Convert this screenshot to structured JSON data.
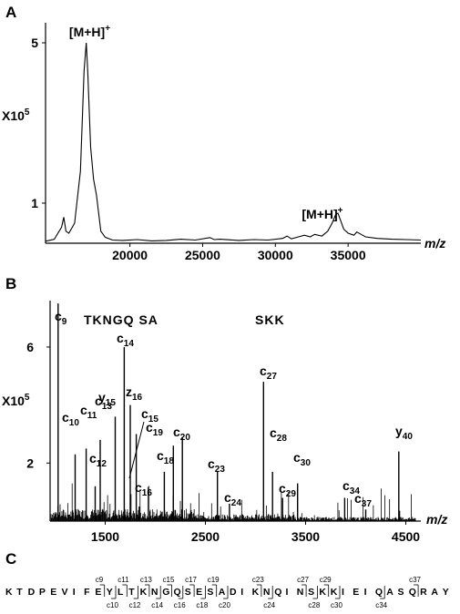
{
  "chart_data": [
    {
      "panel": "A",
      "type": "line",
      "ylabel_prefix": "X10",
      "ylabel_exp": "5",
      "xlabel": "m/z",
      "x_ticks": [
        "20000",
        "25000",
        "30000",
        "35000"
      ],
      "y_ticks": [
        "1",
        "5"
      ],
      "xlim": [
        14200,
        40000
      ],
      "ylim": [
        0,
        5.5
      ],
      "annotations": [
        {
          "text": "[M+H]",
          "sup": "+",
          "x": 17200
        },
        {
          "text": "[M+H]",
          "sup": "+",
          "x": 34200
        }
      ],
      "series": [
        {
          "x": [
            14200,
            14800,
            15300,
            15450,
            15600,
            15800,
            16200,
            16600,
            16850,
            17000,
            17100,
            17300,
            17500,
            17700,
            18000,
            18300,
            18800,
            19500,
            20500,
            21500,
            22500,
            23500,
            24500,
            25500,
            25800,
            26200,
            27500,
            28500,
            29500,
            30500,
            30800,
            31100,
            31500,
            32000,
            32400,
            32700,
            33200,
            33600,
            33900,
            34150,
            34300,
            34500,
            34700,
            35000,
            35400,
            35600,
            35900,
            36200,
            37000,
            38000,
            39000,
            40000
          ],
          "y": [
            0.05,
            0.1,
            0.4,
            0.65,
            0.3,
            0.25,
            0.5,
            1.8,
            4.3,
            5.0,
            4.3,
            2.4,
            1.6,
            1.2,
            0.3,
            0.15,
            0.08,
            0.07,
            0.09,
            0.06,
            0.07,
            0.1,
            0.08,
            0.14,
            0.09,
            0.1,
            0.07,
            0.09,
            0.08,
            0.12,
            0.18,
            0.11,
            0.15,
            0.2,
            0.16,
            0.22,
            0.18,
            0.3,
            0.5,
            0.72,
            0.75,
            0.55,
            0.35,
            0.25,
            0.2,
            0.28,
            0.22,
            0.16,
            0.12,
            0.1,
            0.09,
            0.08
          ]
        }
      ]
    },
    {
      "panel": "B",
      "type": "bar",
      "ylabel_prefix": "X10",
      "ylabel_exp": "5",
      "xlabel": "m/z",
      "x_ticks": [
        "1500",
        "2500",
        "3500",
        "4500"
      ],
      "y_ticks": [
        "2",
        "6"
      ],
      "xlim": [
        950,
        4650
      ],
      "ylim": [
        0,
        7.6
      ],
      "sequence_tags": [
        "TKNGQ SA",
        "SKK"
      ],
      "labeled_peaks": [
        {
          "ion": "c",
          "n": "9",
          "x": 1030,
          "y": 7.5
        },
        {
          "ion": "c",
          "n": "10",
          "x": 1200,
          "y": 2.3
        },
        {
          "ion": "c",
          "n": "11",
          "x": 1310,
          "y": 2.5
        },
        {
          "ion": "c",
          "n": "12",
          "x": 1400,
          "y": 1.2
        },
        {
          "ion": "c",
          "n": "13",
          "x": 1450,
          "y": 2.8
        },
        {
          "ion": "y",
          "n": "15",
          "x": 1600,
          "y": 3.6
        },
        {
          "ion": "c",
          "n": "14",
          "x": 1690,
          "y": 6.0
        },
        {
          "ion": "z",
          "n": "16",
          "x": 1750,
          "y": 4.0
        },
        {
          "ion": "c",
          "n": "15",
          "x": 1810,
          "y": 3.0
        },
        {
          "ion": "c",
          "n": "16",
          "x": 1840,
          "y": 0.5
        },
        {
          "ion": "c",
          "n": "18",
          "x": 2090,
          "y": 1.7
        },
        {
          "ion": "c",
          "n": "19",
          "x": 2180,
          "y": 2.6
        },
        {
          "ion": "c",
          "n": "20",
          "x": 2270,
          "y": 2.9
        },
        {
          "ion": "c",
          "n": "23",
          "x": 2620,
          "y": 1.7
        },
        {
          "ion": "c",
          "n": "24",
          "x": 2740,
          "y": 0.6
        },
        {
          "ion": "c",
          "n": "27",
          "x": 3080,
          "y": 4.8
        },
        {
          "ion": "c",
          "n": "28",
          "x": 3170,
          "y": 1.7
        },
        {
          "ion": "c",
          "n": "29",
          "x": 3270,
          "y": 0.8
        },
        {
          "ion": "c",
          "n": "30",
          "x": 3420,
          "y": 1.3
        },
        {
          "ion": "c",
          "n": "34",
          "x": 3890,
          "y": 0.8
        },
        {
          "ion": "c",
          "n": "37",
          "x": 4100,
          "y": 0.4
        },
        {
          "ion": "y",
          "n": "40",
          "x": 4430,
          "y": 2.4
        }
      ]
    }
  ],
  "panel_labels": {
    "a": "A",
    "b": "B",
    "c": "C"
  },
  "panel_c": {
    "sequence": [
      "K",
      "T",
      "D",
      "P",
      "E",
      "V",
      "I",
      "F",
      "E",
      "Y",
      "L",
      "T",
      "K",
      "N",
      "G",
      "Q",
      "S",
      "E",
      "S",
      "A",
      "D",
      "I",
      "K",
      "N",
      "Q",
      "I",
      "N",
      "S",
      "K",
      "K",
      "I",
      "E",
      "I",
      "Q",
      "A",
      "S",
      "Q",
      "R",
      "A",
      "Y"
    ],
    "c_ions_top": [
      "c9",
      "c11",
      "c13",
      "c15",
      "c17",
      "c19",
      "c23",
      "c27",
      "c29",
      "c37"
    ],
    "c_ions_bottom": [
      "c10",
      "c12",
      "c14",
      "c16",
      "c18",
      "c20",
      "c24",
      "c28",
      "c30",
      "c34"
    ]
  }
}
